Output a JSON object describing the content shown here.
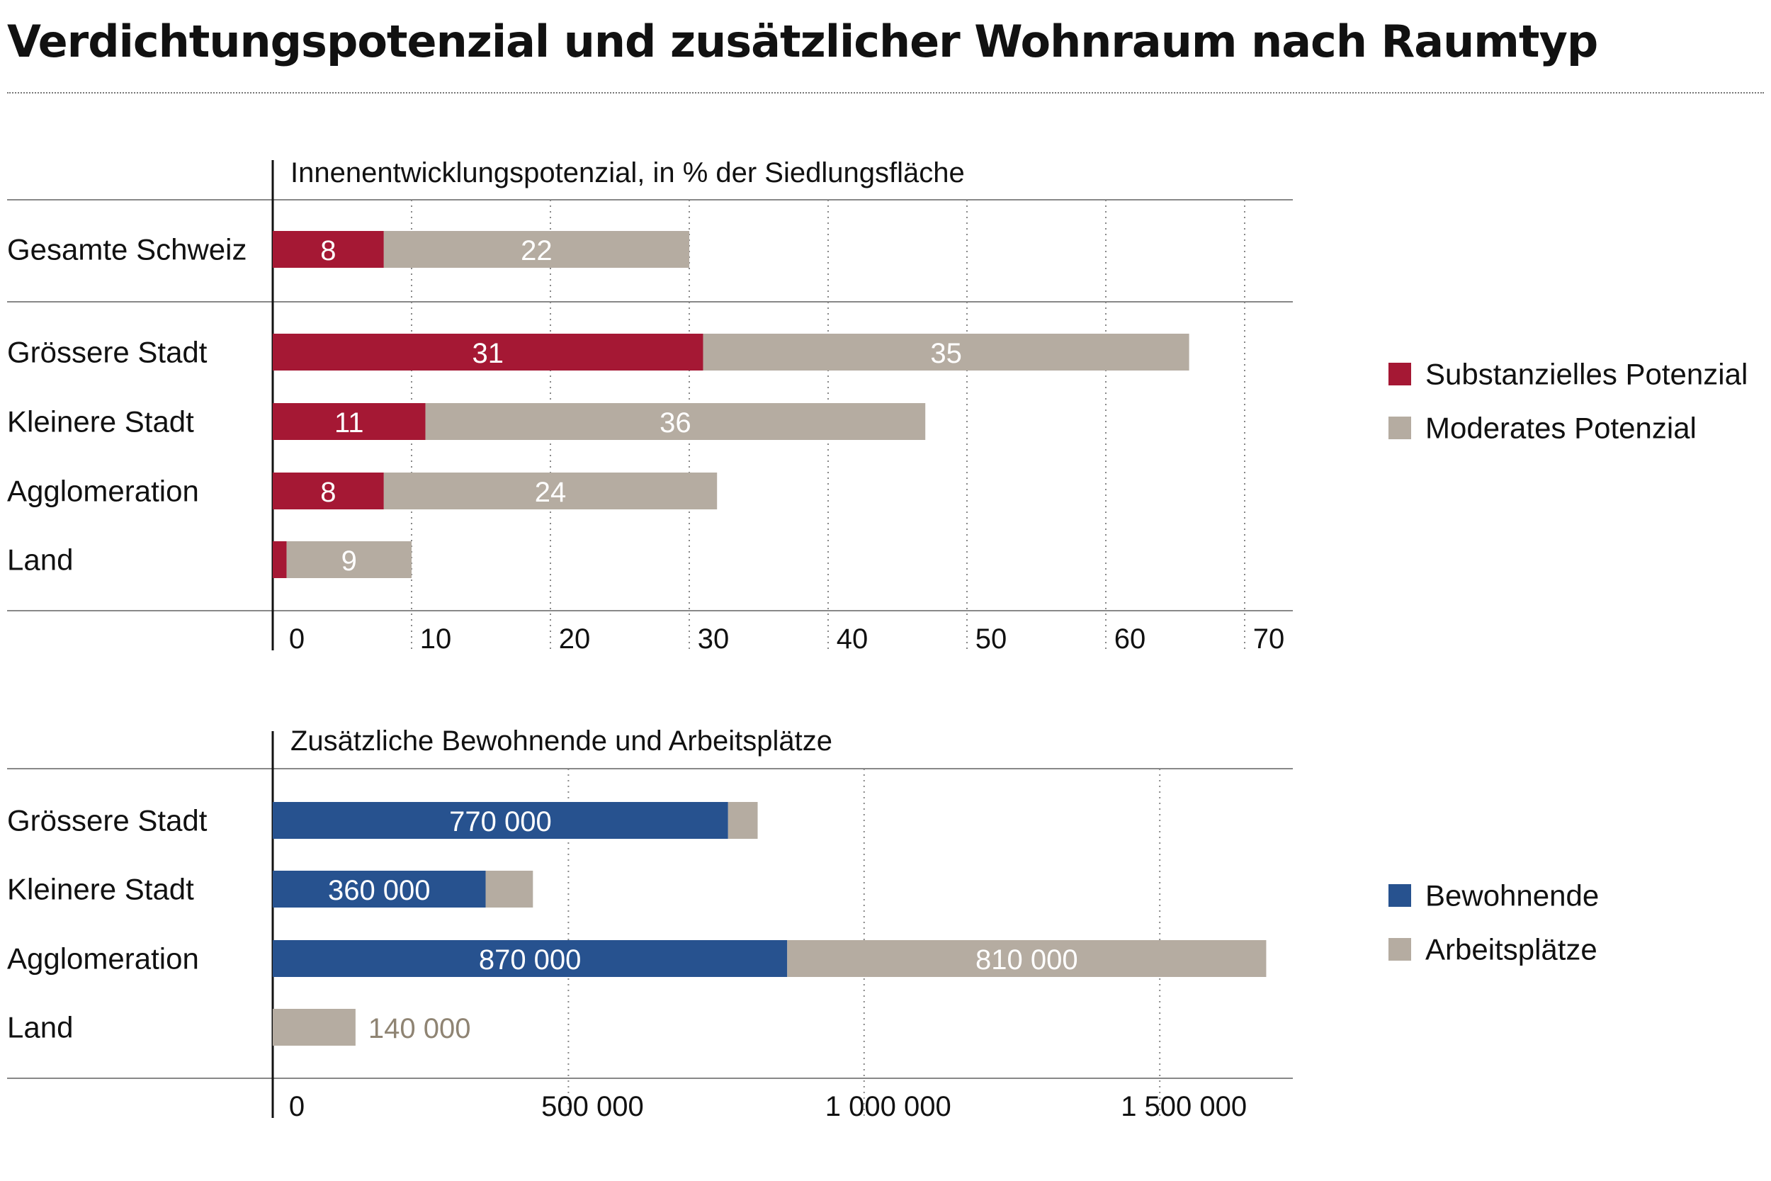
{
  "title": "Verdichtungspotenzial und zusätzlicher Wohnraum nach Raumtyp",
  "chart_data": [
    {
      "type": "bar",
      "orientation": "horizontal",
      "stacked": true,
      "title": "Innenentwicklungspotenzial, in % der Siedlungsfläche",
      "categories": [
        "Gesamte Schweiz",
        "Grössere Stadt",
        "Kleinere Stadt",
        "Agglomeration",
        "Land"
      ],
      "series": [
        {
          "name": "Substanzielles Potenzial",
          "values": [
            8,
            31,
            11,
            8,
            1
          ],
          "labels": [
            "8",
            "31",
            "11",
            "8",
            ""
          ]
        },
        {
          "name": "Moderates Potenzial",
          "values": [
            22,
            35,
            36,
            24,
            9
          ],
          "labels": [
            "22",
            "35",
            "36",
            "24",
            "9"
          ]
        }
      ],
      "xlim": [
        0,
        70
      ],
      "ticks": [
        0,
        10,
        20,
        30,
        40,
        50,
        60,
        70
      ],
      "tick_labels": [
        "0",
        "10",
        "20",
        "30",
        "40",
        "50",
        "60",
        "70"
      ],
      "grid": true,
      "legend_position": "right",
      "colors": [
        "#a51834",
        "#b5aca1"
      ]
    },
    {
      "type": "bar",
      "orientation": "horizontal",
      "stacked": true,
      "title": "Zusätzliche Bewohnende und Arbeitsplätze",
      "categories": [
        "Grössere Stadt",
        "Kleinere Stadt",
        "Agglomeration",
        "Land"
      ],
      "series": [
        {
          "name": "Bewohnende",
          "values": [
            770000,
            360000,
            870000,
            0
          ],
          "labels": [
            "770 000",
            "360 000",
            "870 000",
            ""
          ]
        },
        {
          "name": "Arbeitsplätze",
          "values": [
            50000,
            80000,
            810000,
            140000
          ],
          "labels": [
            "",
            "",
            "810 000",
            "140 000"
          ]
        }
      ],
      "xlim": [
        0,
        1700000
      ],
      "ticks": [
        0,
        500000,
        1000000,
        1500000
      ],
      "tick_labels": [
        "0",
        "500 000",
        "1 000 000",
        "1 500 000"
      ],
      "grid": true,
      "legend_position": "right",
      "colors": [
        "#27528f",
        "#b5aca1"
      ]
    }
  ]
}
